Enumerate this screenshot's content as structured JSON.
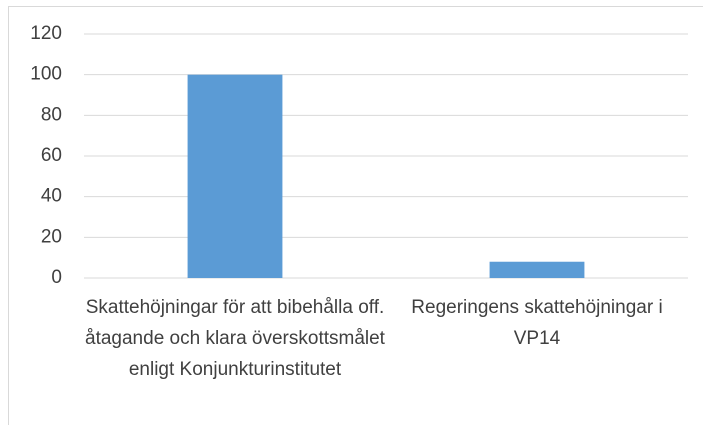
{
  "chart_data": {
    "type": "bar",
    "categories": [
      "Skattehöjningar för att bibehålla off. åtagande och klara överskottsmålet enligt Konjunkturinstitutet",
      "Regeringens skattehöjningar i VP14"
    ],
    "values": [
      100,
      8
    ],
    "color": "#5b9bd5",
    "ylim": [
      0,
      120
    ],
    "yticks": [
      0,
      20,
      40,
      60,
      80,
      100,
      120
    ],
    "grid": true
  }
}
